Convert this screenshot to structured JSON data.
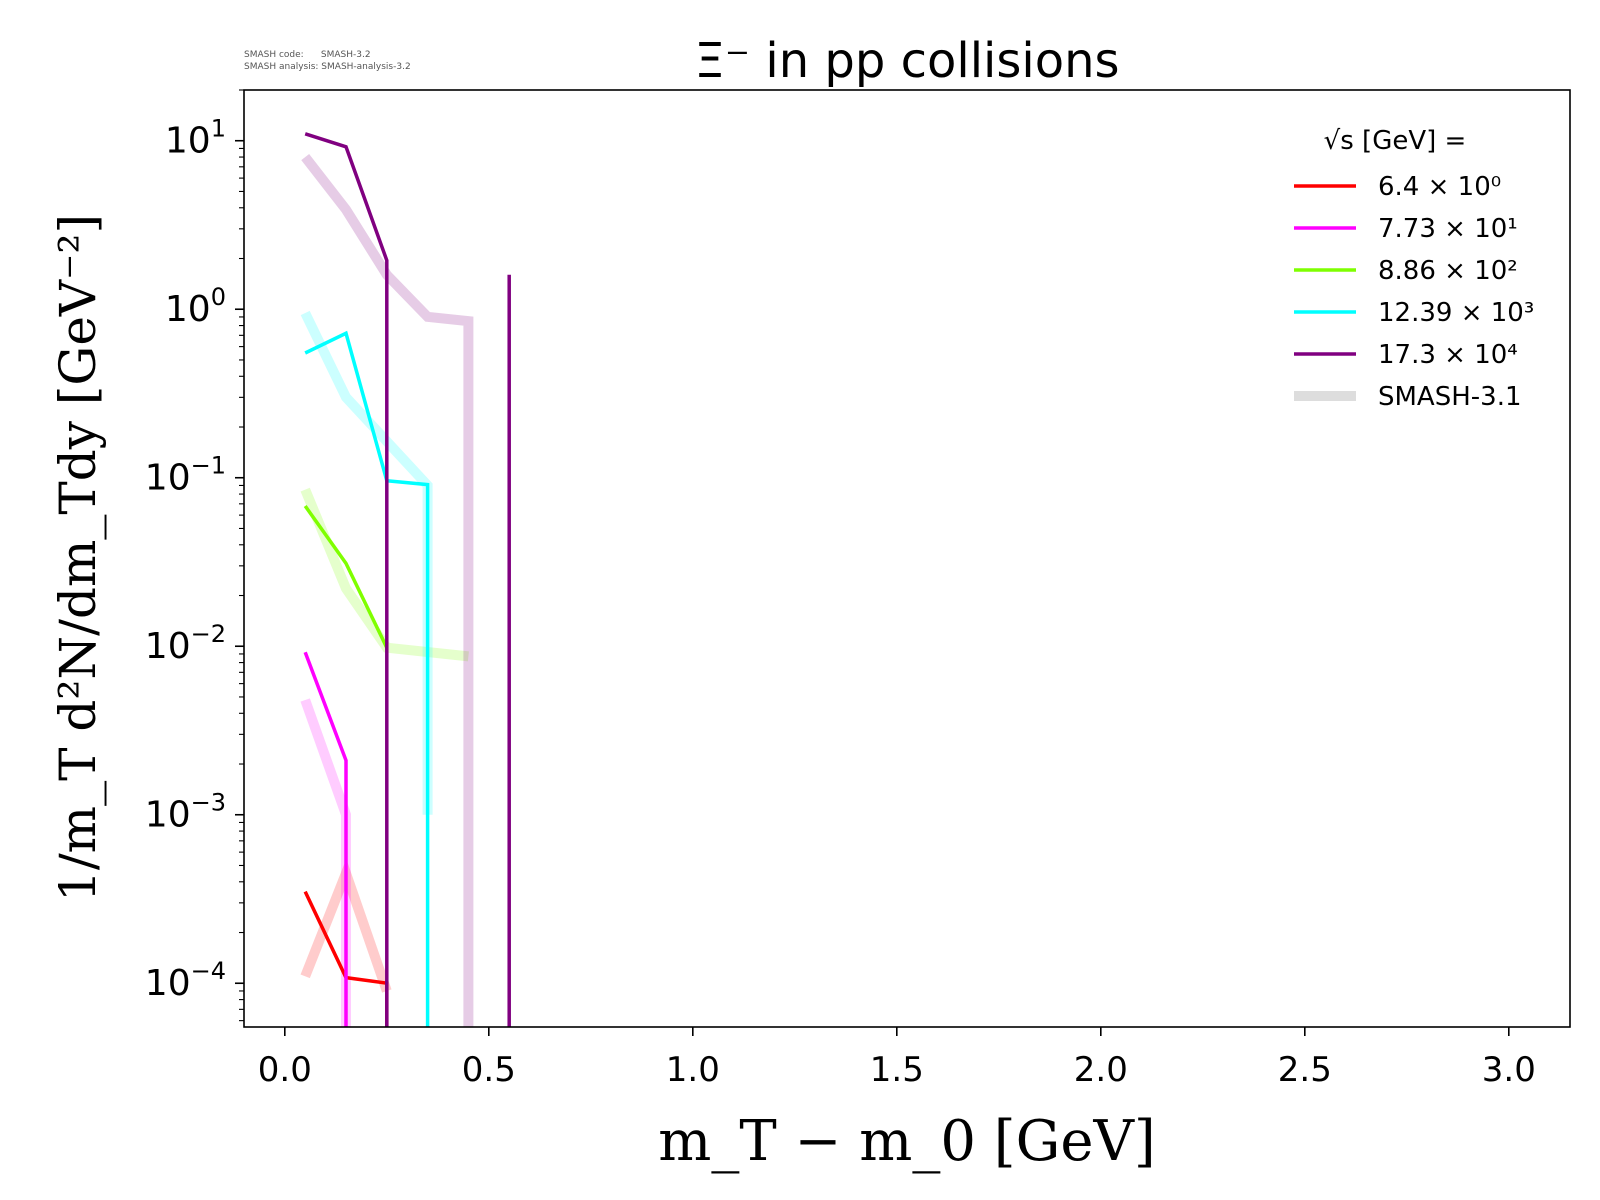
{
  "meta": {
    "code_line": "SMASH code:      SMASH-3.2",
    "analysis_line": "SMASH analysis: SMASH-analysis-3.2"
  },
  "chart_data": {
    "type": "line",
    "title": "Ξ⁻ in pp collisions",
    "xlabel": "m_T − m_0 [GeV]",
    "ylabel": "1/m_T d²N/dm_Tdy [GeV⁻²]",
    "xlim": [
      -0.1,
      3.15
    ],
    "ylim": [
      5.5e-05,
      20
    ],
    "yscale": "log",
    "grid": false,
    "legend_position": "top-right",
    "legend_title": "√s  [GeV] =",
    "x_ticks": [
      "0.0",
      "0.5",
      "1.0",
      "1.5",
      "2.0",
      "2.5",
      "3.0"
    ],
    "y_ticks": [
      {
        "base": "10",
        "exp": "1"
      },
      {
        "base": "10",
        "exp": "0"
      },
      {
        "base": "10",
        "exp": "−1"
      },
      {
        "base": "10",
        "exp": "−2"
      },
      {
        "base": "10",
        "exp": "−3"
      },
      {
        "base": "10",
        "exp": "−4"
      }
    ],
    "series": [
      {
        "name": "6.4 × 10⁰",
        "color": "#ff0000",
        "x": [
          0.05,
          0.15,
          0.25,
          0.25
        ],
        "y": [
          0.00035,
          0.000108,
          0.0001,
          1e-05
        ]
      },
      {
        "name": "7.73 × 10¹",
        "color": "#ff00ff",
        "x": [
          0.05,
          0.15,
          0.15
        ],
        "y": [
          0.0092,
          0.0021,
          1e-05
        ]
      },
      {
        "name": "8.86 × 10²",
        "color": "#7fff00",
        "x": [
          0.05,
          0.15,
          0.25
        ],
        "y": [
          0.068,
          0.031,
          0.0098
        ]
      },
      {
        "name": "12.39 × 10³",
        "color": "#00ffff",
        "x": [
          0.05,
          0.15,
          0.25,
          0.35,
          0.35
        ],
        "y": [
          0.55,
          0.72,
          0.096,
          0.091,
          1e-05
        ]
      },
      {
        "name": "17.3 × 10⁴",
        "color": "#800080",
        "x": [
          0.05,
          0.15,
          0.25,
          0.25
        ],
        "y": [
          11,
          9.2,
          1.95,
          1e-05
        ]
      },
      {
        "name": "",
        "color": "#800080",
        "x": [
          0.55,
          0.55
        ],
        "y": [
          1.6,
          1e-05
        ]
      }
    ],
    "reference_series": [
      {
        "color": "#ff0000",
        "x": [
          0.05,
          0.15,
          0.25
        ],
        "y": [
          0.00011,
          0.00045,
          9e-05
        ]
      },
      {
        "color": "#ff00ff",
        "x": [
          0.05,
          0.15,
          0.15
        ],
        "y": [
          0.0048,
          0.001,
          1e-05
        ]
      },
      {
        "color": "#7fff00",
        "x": [
          0.05,
          0.15,
          0.25,
          0.45
        ],
        "y": [
          0.085,
          0.022,
          0.0098,
          0.0087
        ]
      },
      {
        "color": "#00ffff",
        "x": [
          0.05,
          0.15,
          0.35,
          0.35
        ],
        "y": [
          0.95,
          0.3,
          0.09,
          0.001
        ]
      },
      {
        "color": "#800080",
        "x": [
          0.05,
          0.15,
          0.25,
          0.35,
          0.45,
          0.45
        ],
        "y": [
          8,
          3.9,
          1.6,
          0.9,
          0.85,
          1e-05
        ]
      }
    ],
    "reference_legend": {
      "name": "SMASH-3.1",
      "color": "#dddddd"
    }
  }
}
